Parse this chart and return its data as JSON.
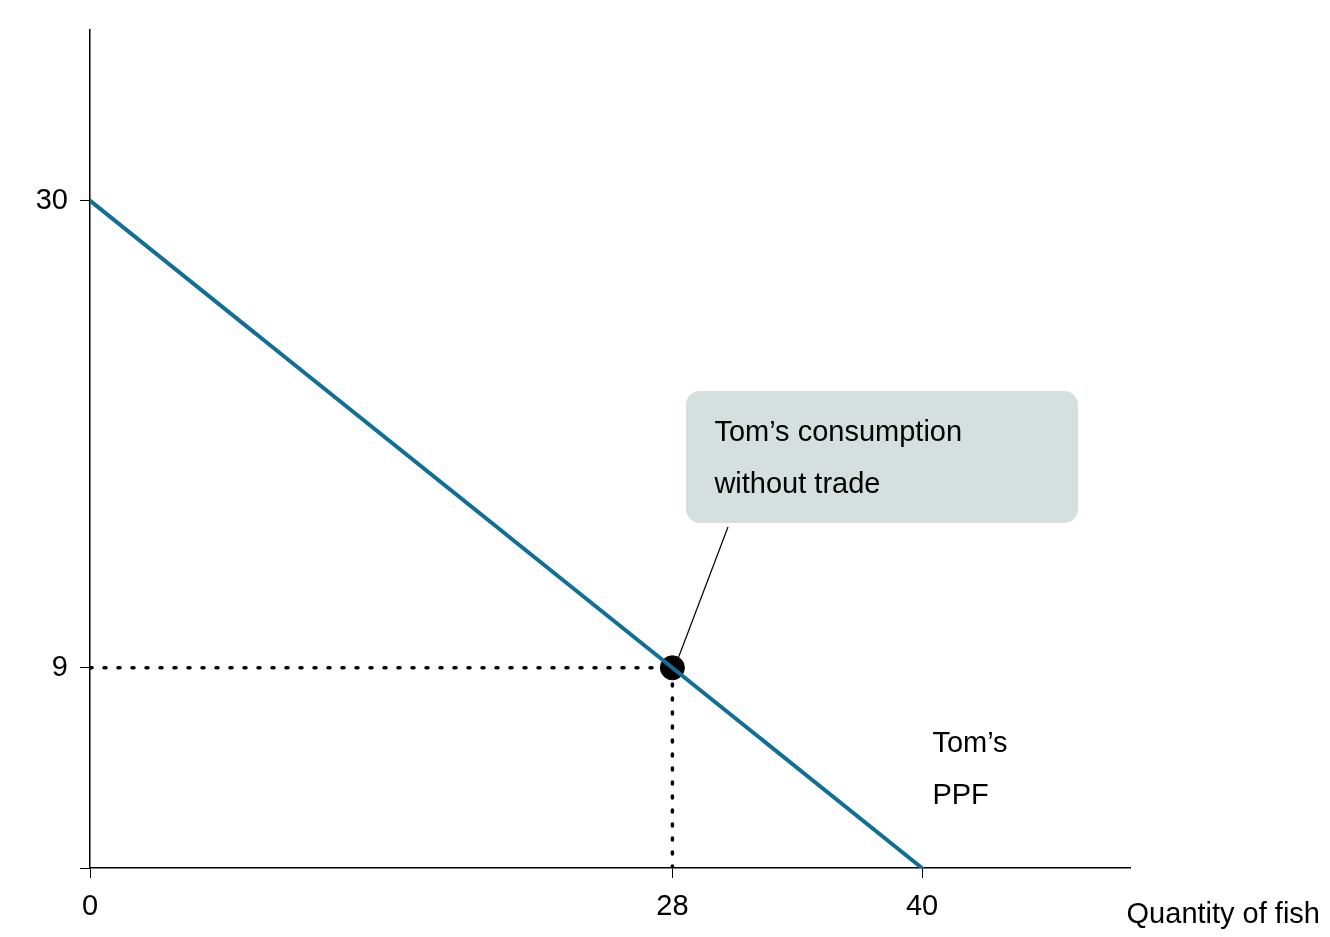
{
  "chart_data": {
    "type": "line",
    "xlabel": "Quantity of fish",
    "xlim": [
      0,
      50
    ],
    "ylim": [
      0,
      37.7
    ],
    "xticks": [
      0,
      28,
      40
    ],
    "yticks": [
      {
        "value": 0,
        "label": null
      },
      9,
      30
    ],
    "series": [
      {
        "type": "line",
        "x": [
          0,
          40
        ],
        "values": [
          30,
          0
        ],
        "color": "#0f6f98",
        "line_style": "solid",
        "marker": "none"
      },
      {
        "type": "line",
        "x": [
          0,
          28
        ],
        "values": [
          9,
          9
        ],
        "color": "#000000",
        "line_style": "dotted",
        "marker": "none"
      },
      {
        "type": "line",
        "x": [
          28,
          28
        ],
        "values": [
          0,
          9
        ],
        "color": "#000000",
        "line_style": "dotted",
        "marker": "none"
      },
      {
        "type": "scatter",
        "x": [
          28
        ],
        "values": [
          9
        ],
        "color": "#000000",
        "marker": "circle"
      }
    ],
    "annotations": [
      {
        "text": "Tom’s consumption without trade",
        "x": 28,
        "y": 9
      },
      "Tom’s PPF"
    ],
    "grid": false,
    "legend": false
  }
}
